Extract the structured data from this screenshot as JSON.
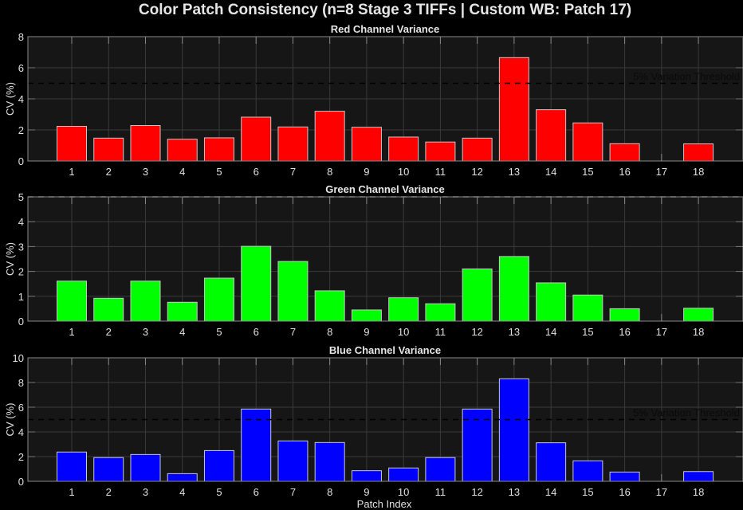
{
  "figure": {
    "title": "Color Patch Consistency (n=8 Stage 3 TIFFs | Custom WB: Patch 17)",
    "xlabel": "Patch Index",
    "threshold_label": "5% Variation Threshold",
    "background": "#000000",
    "axes_background": "#161616"
  },
  "chart_data": [
    {
      "type": "bar",
      "title": "Red Channel Variance",
      "xlabel": "",
      "ylabel": "CV (%)",
      "color": "#ff0000",
      "categories": [
        1,
        2,
        3,
        4,
        5,
        6,
        7,
        8,
        9,
        10,
        11,
        12,
        13,
        14,
        15,
        16,
        17,
        18
      ],
      "values": [
        2.23,
        1.47,
        2.28,
        1.4,
        1.49,
        2.82,
        2.19,
        3.2,
        2.17,
        1.54,
        1.22,
        1.47,
        6.65,
        3.3,
        2.45,
        1.11,
        0,
        1.1
      ],
      "ylim": [
        0,
        8
      ],
      "yticks": [
        0,
        2,
        4,
        6,
        8
      ],
      "threshold": 5,
      "threshold_label": "5% Variation Threshold",
      "grid": true
    },
    {
      "type": "bar",
      "title": "Green Channel Variance",
      "xlabel": "",
      "ylabel": "CV (%)",
      "color": "#00ff00",
      "categories": [
        1,
        2,
        3,
        4,
        5,
        6,
        7,
        8,
        9,
        10,
        11,
        12,
        13,
        14,
        15,
        16,
        17,
        18
      ],
      "values": [
        1.61,
        0.92,
        1.61,
        0.76,
        1.73,
        3.01,
        2.4,
        1.22,
        0.45,
        0.94,
        0.7,
        2.1,
        2.6,
        1.54,
        1.05,
        0.5,
        0,
        0.52
      ],
      "ylim": [
        0,
        5
      ],
      "yticks": [
        0,
        1,
        2,
        3,
        4,
        5
      ],
      "threshold": 5,
      "threshold_label": "",
      "grid": true
    },
    {
      "type": "bar",
      "title": "Blue Channel Variance",
      "xlabel": "Patch Index",
      "ylabel": "CV (%)",
      "color": "#0000ff",
      "categories": [
        1,
        2,
        3,
        4,
        5,
        6,
        7,
        8,
        9,
        10,
        11,
        12,
        13,
        14,
        15,
        16,
        17,
        18
      ],
      "values": [
        2.37,
        1.92,
        2.17,
        0.62,
        2.49,
        5.85,
        3.27,
        3.14,
        0.86,
        1.08,
        1.92,
        5.85,
        8.3,
        3.12,
        1.66,
        0.75,
        0,
        0.79
      ],
      "ylim": [
        0,
        10
      ],
      "yticks": [
        0,
        2,
        4,
        6,
        8,
        10
      ],
      "threshold": 5,
      "threshold_label": "5% Variation Threshold",
      "grid": true
    }
  ]
}
